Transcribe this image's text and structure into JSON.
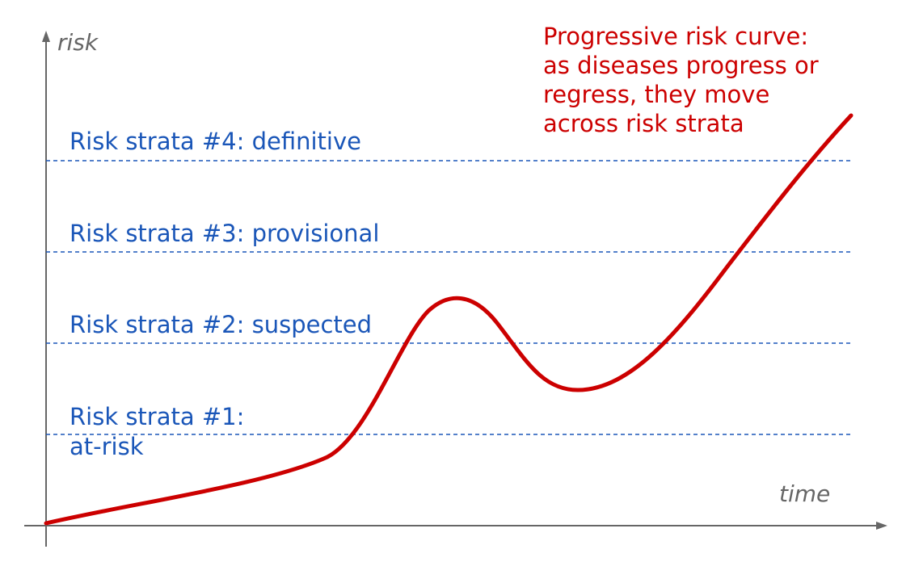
{
  "axes": {
    "y_label": "risk",
    "x_label": "time",
    "color": "#666666"
  },
  "strata": [
    {
      "lines": [
        "Risk strata #4: definitive"
      ]
    },
    {
      "lines": [
        "Risk strata #3: provisional"
      ]
    },
    {
      "lines": [
        "Risk strata #2: suspected"
      ]
    },
    {
      "lines": [
        "Risk strata #1:",
        "at-risk"
      ]
    }
  ],
  "annotation": {
    "lines": [
      "Progressive risk curve:",
      "as diseases progress or",
      "regress, they move",
      "across risk strata"
    ]
  },
  "colors": {
    "strata": "#1a56b8",
    "curve": "#cc0000",
    "axis": "#666666"
  }
}
